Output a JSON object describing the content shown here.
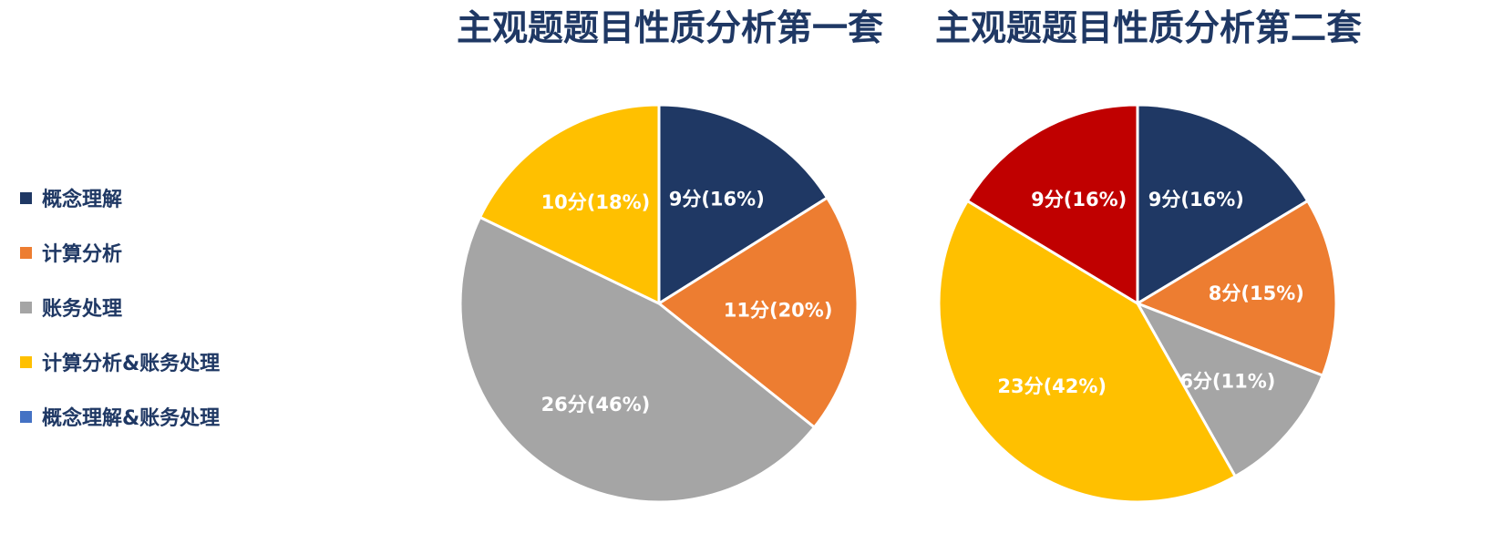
{
  "legend": [
    {
      "label": "概念理解",
      "color": "#1f3864"
    },
    {
      "label": "计算分析",
      "color": "#ed7d31"
    },
    {
      "label": "账务处理",
      "color": "#a5a5a5"
    },
    {
      "label": "计算分析&账务处理",
      "color": "#ffc000"
    },
    {
      "label": "概念理解&账务处理",
      "color": "#4472c4"
    }
  ],
  "chart_data": [
    {
      "type": "pie",
      "title": "主观题题目性质分析第一套",
      "slices": [
        {
          "category": "概念理解",
          "value": 9,
          "label": "9分(16%)",
          "color": "#1f3864"
        },
        {
          "category": "计算分析",
          "value": 11,
          "label": "11分(20%)",
          "color": "#ed7d31"
        },
        {
          "category": "账务处理",
          "value": 26,
          "label": "26分(46%)",
          "color": "#a5a5a5"
        },
        {
          "category": "计算分析&账务处理",
          "value": 10,
          "label": "10分(18%)",
          "color": "#ffc000"
        }
      ]
    },
    {
      "type": "pie",
      "title": "主观题题目性质分析第二套",
      "slices": [
        {
          "category": "概念理解",
          "value": 9,
          "label": "9分(16%)",
          "color": "#1f3864"
        },
        {
          "category": "计算分析",
          "value": 8,
          "label": "8分(15%)",
          "color": "#ed7d31"
        },
        {
          "category": "账务处理",
          "value": 6,
          "label": "6分(11%)",
          "color": "#a5a5a5"
        },
        {
          "category": "计算分析&账务处理",
          "value": 23,
          "label": "23分(42%)",
          "color": "#ffc000"
        },
        {
          "category": "",
          "value": 9,
          "label": "9分(16%)",
          "color": "#c00000"
        }
      ]
    }
  ]
}
